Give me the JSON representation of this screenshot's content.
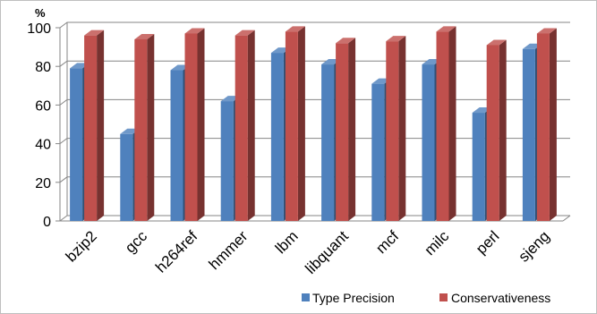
{
  "chart_data": {
    "type": "bar",
    "style": "3d-clustered",
    "y_unit_label": "%",
    "categories": [
      "bzip2",
      "gcc",
      "h264ref",
      "hmmer",
      "lbm",
      "libquant",
      "mcf",
      "milc",
      "perl",
      "sjeng"
    ],
    "series": [
      {
        "name": "Type Precision",
        "color": "#4f81bd",
        "values": [
          79,
          45,
          78,
          62,
          87,
          81,
          71,
          81,
          56,
          89
        ]
      },
      {
        "name": "Conservativeness",
        "color": "#c0504d",
        "values": [
          96,
          94,
          97,
          96,
          98,
          92,
          93,
          98,
          91,
          97
        ]
      }
    ],
    "ylim": [
      0,
      100
    ],
    "y_ticks": [
      0,
      20,
      40,
      60,
      80,
      100
    ],
    "grid": true,
    "legend_position": "bottom-right",
    "title": "",
    "xlabel": "",
    "ylabel": ""
  }
}
